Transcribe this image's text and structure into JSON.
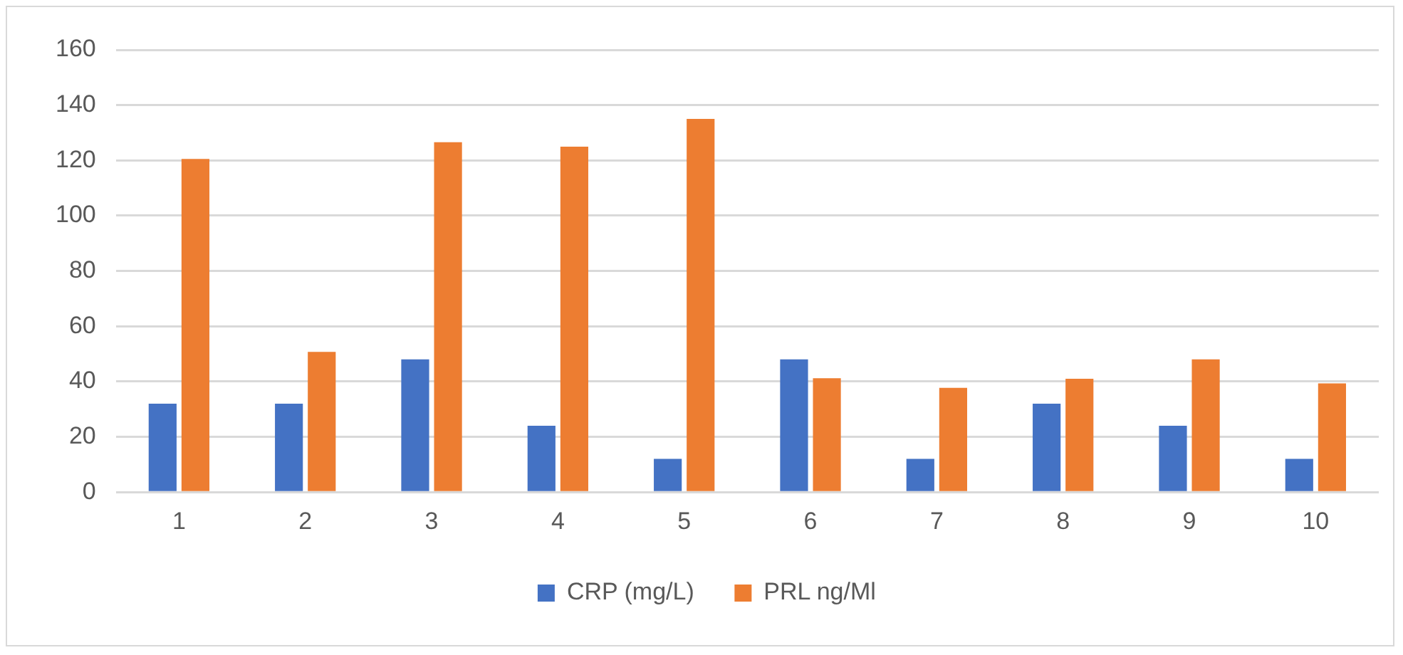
{
  "chart_data": {
    "type": "bar",
    "categories": [
      "1",
      "2",
      "3",
      "4",
      "5",
      "6",
      "7",
      "8",
      "9",
      "10"
    ],
    "series": [
      {
        "name": "CRP (mg/L)",
        "color": "#4472c4",
        "values": [
          32,
          32,
          48,
          24,
          12,
          48,
          12,
          32,
          24,
          12
        ]
      },
      {
        "name": "PRL ng/Ml",
        "color": "#ed7d31",
        "values": [
          120.5,
          50.7,
          126.6,
          125,
          135,
          41.2,
          37.7,
          41,
          48,
          39.3
        ]
      }
    ],
    "ylim": [
      0,
      160
    ],
    "yticks": [
      0,
      20,
      40,
      60,
      80,
      100,
      120,
      140,
      160
    ],
    "grid": "y",
    "legend": "bottom"
  }
}
